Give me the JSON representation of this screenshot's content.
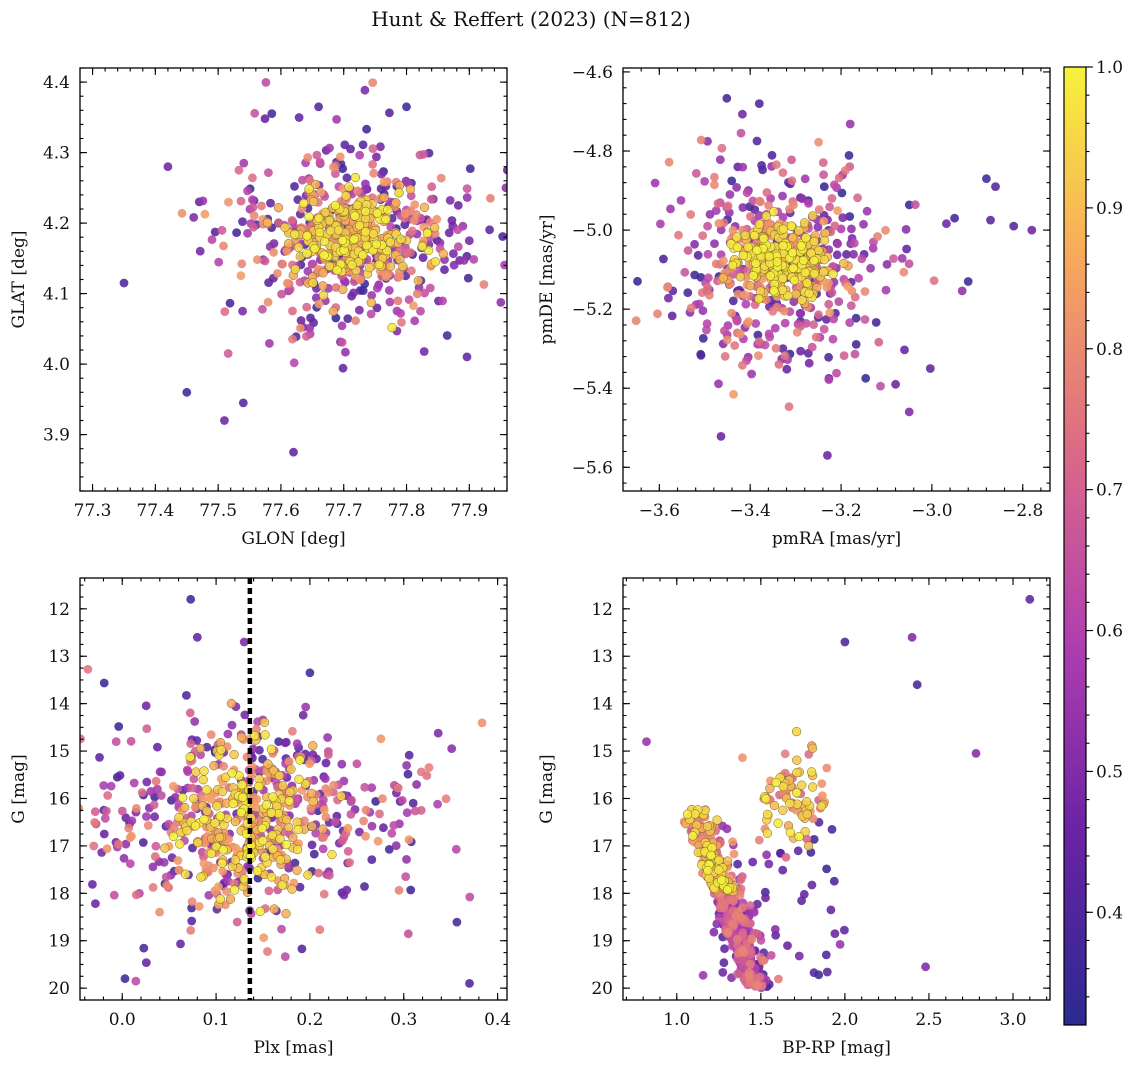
{
  "title": "Hunt & Reffert (2023) (N=812)",
  "colors": {
    "cmap_low": "#2a2a8f",
    "cmap_mid": "#b03fb0",
    "cmap_high": "#f7f23b",
    "vline": "#000000"
  },
  "colorbar": {
    "vmin": 0.32,
    "vmax": 1.0,
    "ticks": [
      0.4,
      0.5,
      0.6,
      0.7,
      0.8,
      0.9,
      1.0
    ],
    "tick_labels": [
      "0.4",
      "0.5",
      "0.6",
      "0.7",
      "0.8",
      "0.9",
      "1.0"
    ]
  },
  "chart_data": [
    {
      "type": "scatter",
      "id": "sky",
      "title": "",
      "xlabel": "GLON [deg]",
      "ylabel": "GLAT [deg]",
      "xlim": [
        77.28,
        77.96
      ],
      "ylim": [
        3.82,
        4.42
      ],
      "invert_y": false,
      "xticks": [
        77.3,
        77.4,
        77.5,
        77.6,
        77.7,
        77.8,
        77.9
      ],
      "xtick_labels": [
        "77.3",
        "77.4",
        "77.5",
        "77.6",
        "77.7",
        "77.8",
        "77.9"
      ],
      "yticks": [
        3.9,
        4.0,
        4.1,
        4.2,
        4.3,
        4.4
      ],
      "ytick_labels": [
        "3.9",
        "4.0",
        "4.1",
        "4.2",
        "4.3",
        "4.4"
      ],
      "points_spec": {
        "n_members": 812,
        "probability_range": [
          0.32,
          1.0
        ],
        "core_center": [
          77.71,
          4.18
        ],
        "core_spread": [
          0.05,
          0.035
        ],
        "halo_spread": [
          0.1,
          0.07
        ],
        "outliers": [
          [
            77.35,
            4.115
          ],
          [
            77.42,
            4.28
          ],
          [
            77.45,
            3.96
          ],
          [
            77.51,
            3.92
          ],
          [
            77.62,
            3.875
          ],
          [
            77.8,
            4.365
          ],
          [
            77.66,
            4.365
          ],
          [
            77.9,
            4.175
          ],
          [
            77.47,
            4.23
          ],
          [
            77.54,
            3.945
          ]
        ]
      }
    },
    {
      "type": "scatter",
      "id": "proper_motion",
      "title": "",
      "xlabel": "pmRA [mas/yr]",
      "ylabel": "pmDE [mas/yr]",
      "xlim": [
        -3.68,
        -2.74
      ],
      "ylim": [
        -5.66,
        -4.59
      ],
      "invert_y": false,
      "xticks": [
        -3.6,
        -3.4,
        -3.2,
        -3.0,
        -2.8
      ],
      "xtick_labels": [
        "−3.6",
        "−3.4",
        "−3.2",
        "−3.0",
        "−2.8"
      ],
      "yticks": [
        -5.6,
        -5.4,
        -5.2,
        -5.0,
        -4.8,
        -4.6
      ],
      "ytick_labels": [
        "−5.6",
        "−5.4",
        "−5.2",
        "−5.0",
        "−4.8",
        "−4.6"
      ],
      "points_spec": {
        "core_center": [
          -3.33,
          -5.08
        ],
        "core_spread": [
          0.05,
          0.05
        ],
        "halo_spread": [
          0.12,
          0.13
        ],
        "outliers": [
          [
            -2.78,
            -5.0
          ],
          [
            -2.82,
            -4.99
          ],
          [
            -2.86,
            -4.89
          ],
          [
            -2.92,
            -5.13
          ],
          [
            -2.95,
            -4.97
          ],
          [
            -3.05,
            -5.46
          ],
          [
            -3.08,
            -5.39
          ],
          [
            -3.23,
            -5.57
          ],
          [
            -3.38,
            -4.68
          ],
          [
            -2.88,
            -4.87
          ]
        ]
      }
    },
    {
      "type": "scatter",
      "id": "plx_vs_g",
      "title": "",
      "xlabel": "Plx [mas]",
      "ylabel": "G [mag]",
      "xlim": [
        -0.045,
        0.41
      ],
      "ylim": [
        11.35,
        20.25
      ],
      "invert_y": true,
      "xticks": [
        0.0,
        0.1,
        0.2,
        0.3,
        0.4
      ],
      "xtick_labels": [
        "0.0",
        "0.1",
        "0.2",
        "0.3",
        "0.4"
      ],
      "yticks": [
        12,
        13,
        14,
        15,
        16,
        17,
        18,
        19,
        20
      ],
      "ytick_labels": [
        "12",
        "13",
        "14",
        "15",
        "16",
        "17",
        "18",
        "19",
        "20"
      ],
      "reference_line_x": 0.136,
      "points_spec": {
        "core_center": [
          0.135,
          16.4
        ],
        "core_spread": [
          0.035,
          0.8
        ],
        "halo_spread": [
          0.09,
          1.1
        ],
        "outliers": [
          [
            0.073,
            11.8
          ],
          [
            0.08,
            12.6
          ],
          [
            0.13,
            12.7
          ],
          [
            0.2,
            13.35
          ],
          [
            0.37,
            19.9
          ],
          [
            0.31,
            16.1
          ],
          [
            0.003,
            19.8
          ]
        ]
      }
    },
    {
      "type": "scatter",
      "id": "cmd",
      "title": "",
      "xlabel": "BP-RP [mag]",
      "ylabel": "G [mag]",
      "xlim": [
        0.68,
        3.22
      ],
      "ylim": [
        11.35,
        20.25
      ],
      "invert_y": true,
      "xticks": [
        1.0,
        1.5,
        2.0,
        2.5,
        3.0
      ],
      "xtick_labels": [
        "1.0",
        "1.5",
        "2.0",
        "2.5",
        "3.0"
      ],
      "yticks": [
        12,
        13,
        14,
        15,
        16,
        17,
        18,
        19,
        20
      ],
      "ytick_labels": [
        "12",
        "13",
        "14",
        "15",
        "16",
        "17",
        "18",
        "19",
        "20"
      ],
      "points_spec": {
        "main_sequence": {
          "g_range": [
            16.2,
            20.0
          ],
          "color_at_top": 1.05,
          "color_slope": 0.1
        },
        "red_clump_center": [
          1.7,
          16.0
        ],
        "outliers": [
          [
            3.1,
            11.8
          ],
          [
            2.4,
            12.6
          ],
          [
            2.43,
            13.6
          ],
          [
            2.0,
            12.7
          ],
          [
            2.78,
            15.05
          ],
          [
            2.48,
            19.55
          ],
          [
            0.82,
            14.8
          ]
        ]
      }
    }
  ]
}
